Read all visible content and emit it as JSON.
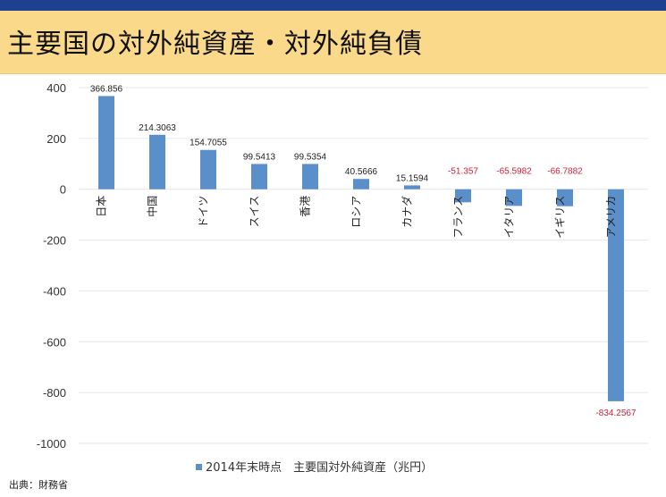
{
  "title": "主要国の対外純資産・対外純負債",
  "source": "出典：財務省",
  "colors": {
    "bar": "#5b8fc9",
    "negative_label": "#d0203a",
    "positive_label": "#222222",
    "grid": "#e6e6e6",
    "title_bg": "#fbd98a",
    "top_bar": "#1f3f8f"
  },
  "chart_data": {
    "type": "bar",
    "categories": [
      "日本",
      "中国",
      "ドイツ",
      "スイス",
      "香港",
      "ロシア",
      "カナダ",
      "フランス",
      "イタリア",
      "イギリス",
      "アメリカ"
    ],
    "series": [
      {
        "name": "2014年末時点　主要国対外純資産（兆円）",
        "values": [
          366.856,
          214.3063,
          154.7055,
          99.5413,
          99.5354,
          40.5666,
          15.1594,
          -51.357,
          -65.5982,
          -66.7882,
          -834.2567
        ],
        "labels": [
          "366.856",
          "214.3063",
          "154.7055",
          "99.5413",
          "99.5354",
          "40.5666",
          "15.1594",
          "-51.357",
          "-65.5982",
          "-66.7882",
          "-834.2567"
        ]
      }
    ],
    "ylim": [
      -1000,
      400
    ],
    "yticks": [
      400,
      200,
      0,
      -200,
      -400,
      -600,
      -800,
      -1000
    ],
    "ytick_labels": [
      "400",
      "200",
      "0",
      "-200",
      "-400",
      "-600",
      "-800",
      "-1000"
    ],
    "grid": true,
    "legend": "bottom-center",
    "xlabel": "",
    "ylabel": ""
  }
}
